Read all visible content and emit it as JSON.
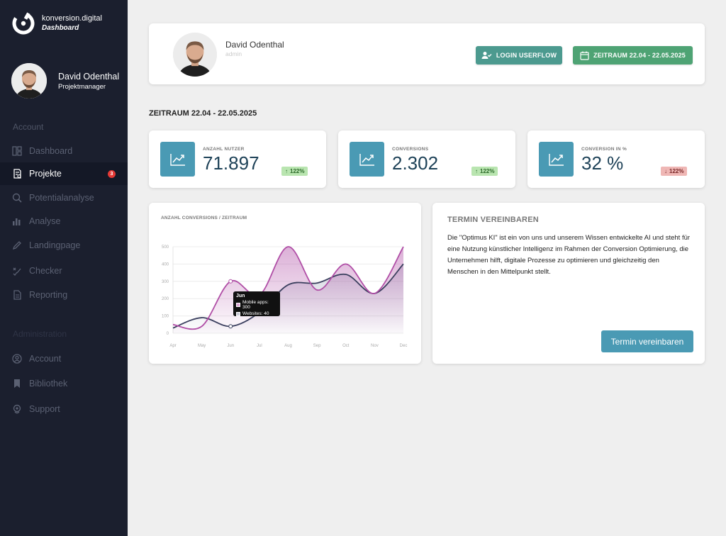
{
  "brand": {
    "name": "konversion.digital",
    "subtitle": "Dashboard"
  },
  "user": {
    "name": "David Odenthal",
    "role": "Projektmanager",
    "header_role": "admin"
  },
  "sidebar": {
    "section_account": "Account",
    "section_admin": "Administration",
    "items": [
      {
        "label": "Dashboard",
        "icon": "dashboard-icon"
      },
      {
        "label": "Projekte",
        "icon": "projects-icon",
        "badge": "3",
        "active": true
      },
      {
        "label": "Potentialanalyse",
        "icon": "search-icon"
      },
      {
        "label": "Analyse",
        "icon": "bar-chart-icon"
      },
      {
        "label": "Landingpage",
        "icon": "edit-icon"
      },
      {
        "label": "Checker",
        "icon": "checker-icon"
      },
      {
        "label": "Reporting",
        "icon": "document-icon"
      }
    ],
    "admin_items": [
      {
        "label": "Account",
        "icon": "user-circle-icon"
      },
      {
        "label": "Bibliothek",
        "icon": "bookmark-icon"
      },
      {
        "label": "Support",
        "icon": "support-icon"
      }
    ]
  },
  "header": {
    "login_button": "LOGIN USERFLOW",
    "range_button": "ZEITRAUM 22.04 - 22.05.2025",
    "colors": {
      "login": "#4c9a8f",
      "range": "#4ea374"
    }
  },
  "period_title": "ZEITRAUM 22.04 - 22.05.2025",
  "stats": [
    {
      "label": "ANZAHL NUTZER",
      "value": "71.897",
      "change": "122%",
      "direction": "up"
    },
    {
      "label": "CONVERSIONS",
      "value": "2.302",
      "change": "122%",
      "direction": "up"
    },
    {
      "label": "CONVERSION IN %",
      "value": "32 %",
      "change": "122%",
      "direction": "down"
    }
  ],
  "chart": {
    "title": "ANZAHL CONVERSIONS / ZEITRAUM",
    "tooltip": {
      "title": "Jun",
      "rows": [
        "Mobile apps: 300",
        "Websites: 40"
      ]
    }
  },
  "chart_data": {
    "type": "area",
    "title": "ANZAHL CONVERSIONS / ZEITRAUM",
    "x": [
      "Apr",
      "May",
      "Jun",
      "Jul",
      "Aug",
      "Sep",
      "Oct",
      "Nov",
      "Dec"
    ],
    "series": [
      {
        "name": "Mobile apps",
        "values": [
          50,
          40,
          300,
          220,
          500,
          250,
          400,
          230,
          500
        ],
        "color": "#b04ea6"
      },
      {
        "name": "Websites",
        "values": [
          30,
          90,
          40,
          120,
          280,
          290,
          340,
          230,
          400
        ],
        "color": "#3a3f5e"
      }
    ],
    "yticks": [
      0,
      100,
      200,
      300,
      400,
      500
    ],
    "ylim": [
      0,
      500
    ],
    "grid": true
  },
  "termin": {
    "title": "TERMIN VEREINBAREN",
    "text": "Die \"Optimus KI\" ist ein von uns und unserem Wissen entwickelte AI und steht für eine Nutzung künstlicher Intelligenz im Rahmen der Conversion Optimierung, die Unternehmen hilft, digitale Prozesse zu optimieren und gleichzeitig den Menschen in den Mittelpunkt stellt.",
    "button": "Termin vereinbaren"
  }
}
